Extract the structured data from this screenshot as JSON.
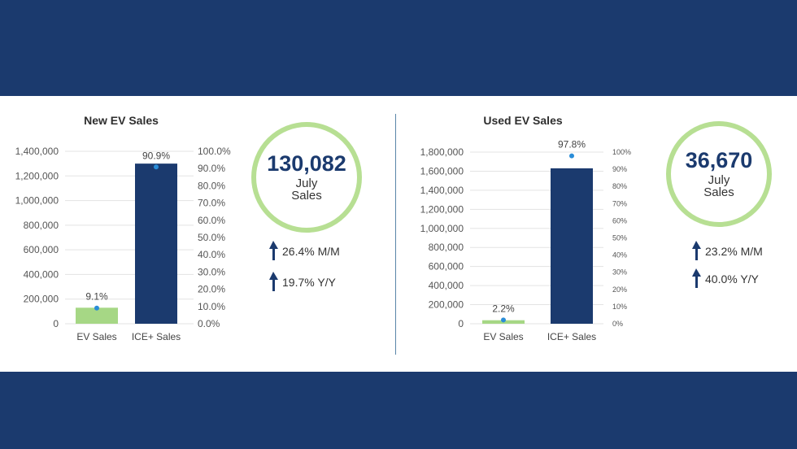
{
  "colors": {
    "navy": "#1b3a6e",
    "green": "#a6d785",
    "ring": "#b7df93",
    "dot": "#2a8dd8"
  },
  "icons": {
    "arrow": "up-arrow-icon"
  },
  "chart_data": [
    {
      "type": "bar",
      "title": "New EV Sales",
      "categories": [
        "EV Sales",
        "ICE+ Sales"
      ],
      "values": [
        130082,
        1300000
      ],
      "value_axis_ticks": [
        "0",
        "200,000",
        "400,000",
        "600,000",
        "800,000",
        "1,000,000",
        "1,200,000",
        "1,400,000"
      ],
      "ylim": [
        0,
        1400000
      ],
      "share_series": {
        "values": [
          9.1,
          90.9
        ],
        "labels": [
          "9.1%",
          "90.9%"
        ]
      },
      "share_axis_ticks": [
        "0.0%",
        "10.0%",
        "20.0%",
        "30.0%",
        "40.0%",
        "50.0%",
        "60.0%",
        "70.0%",
        "80.0%",
        "90.0%",
        "100.0%"
      ],
      "share_ylim": [
        0,
        100
      ]
    },
    {
      "type": "bar",
      "title": "Used EV Sales",
      "categories": [
        "EV Sales",
        "ICE+ Sales"
      ],
      "values": [
        36670,
        1630000
      ],
      "value_axis_ticks": [
        "0",
        "200,000",
        "400,000",
        "600,000",
        "800,000",
        "1,000,000",
        "1,200,000",
        "1,400,000",
        "1,600,000",
        "1,800,000"
      ],
      "ylim": [
        0,
        1800000
      ],
      "share_series": {
        "values": [
          2.2,
          97.8
        ],
        "labels": [
          "2.2%",
          "97.8%"
        ]
      },
      "share_axis_ticks": [
        "0%",
        "10%",
        "20%",
        "30%",
        "40%",
        "50%",
        "60%",
        "70%",
        "80%",
        "90%",
        "100%"
      ],
      "share_ylim": [
        0,
        100
      ]
    }
  ],
  "summaries": [
    {
      "number": "130,082",
      "line1": "July",
      "line2": "Sales",
      "stats": [
        "26.4% M/M",
        "19.7% Y/Y"
      ]
    },
    {
      "number": "36,670",
      "line1": "July",
      "line2": "Sales",
      "stats": [
        "23.2% M/M",
        "40.0% Y/Y"
      ]
    }
  ]
}
